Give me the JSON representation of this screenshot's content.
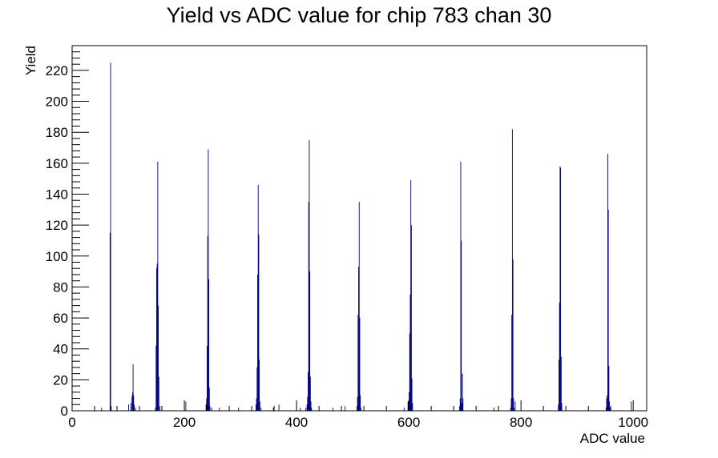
{
  "chart_data": {
    "type": "bar",
    "title": "Yield vs ADC value for chip 783 chan 30",
    "xlabel": "ADC value",
    "ylabel": "Yield",
    "xlim": [
      0,
      1024
    ],
    "ylim": [
      0,
      236
    ],
    "x_ticks": [
      0,
      200,
      400,
      600,
      800,
      1000
    ],
    "y_ticks": [
      0,
      20,
      40,
      60,
      80,
      100,
      120,
      140,
      160,
      180,
      200,
      220
    ],
    "bin_width": 1,
    "grid": false,
    "legend": "none",
    "line_color": "#000080",
    "bins": [
      {
        "x": 52,
        "y": 2
      },
      {
        "x": 67,
        "y": 115
      },
      {
        "x": 68,
        "y": 225
      },
      {
        "x": 69,
        "y": 3
      },
      {
        "x": 100,
        "y": 4
      },
      {
        "x": 104,
        "y": 5
      },
      {
        "x": 106,
        "y": 9
      },
      {
        "x": 107,
        "y": 12
      },
      {
        "x": 108,
        "y": 30
      },
      {
        "x": 109,
        "y": 10
      },
      {
        "x": 110,
        "y": 4
      },
      {
        "x": 112,
        "y": 2
      },
      {
        "x": 148,
        "y": 2
      },
      {
        "x": 149,
        "y": 42
      },
      {
        "x": 150,
        "y": 92
      },
      {
        "x": 151,
        "y": 95
      },
      {
        "x": 152,
        "y": 161
      },
      {
        "x": 153,
        "y": 68
      },
      {
        "x": 154,
        "y": 22
      },
      {
        "x": 156,
        "y": 3
      },
      {
        "x": 202,
        "y": 6
      },
      {
        "x": 238,
        "y": 4
      },
      {
        "x": 239,
        "y": 8
      },
      {
        "x": 240,
        "y": 42
      },
      {
        "x": 241,
        "y": 113
      },
      {
        "x": 242,
        "y": 169
      },
      {
        "x": 243,
        "y": 85
      },
      {
        "x": 244,
        "y": 15
      },
      {
        "x": 245,
        "y": 3
      },
      {
        "x": 248,
        "y": 2
      },
      {
        "x": 262,
        "y": 2
      },
      {
        "x": 296,
        "y": 2
      },
      {
        "x": 327,
        "y": 4
      },
      {
        "x": 328,
        "y": 8
      },
      {
        "x": 329,
        "y": 28
      },
      {
        "x": 330,
        "y": 88
      },
      {
        "x": 331,
        "y": 146
      },
      {
        "x": 332,
        "y": 114
      },
      {
        "x": 333,
        "y": 33
      },
      {
        "x": 334,
        "y": 6
      },
      {
        "x": 336,
        "y": 2
      },
      {
        "x": 358,
        "y": 2
      },
      {
        "x": 368,
        "y": 4
      },
      {
        "x": 406,
        "y": 2
      },
      {
        "x": 416,
        "y": 2
      },
      {
        "x": 418,
        "y": 4
      },
      {
        "x": 419,
        "y": 9
      },
      {
        "x": 420,
        "y": 25
      },
      {
        "x": 421,
        "y": 135
      },
      {
        "x": 422,
        "y": 175
      },
      {
        "x": 423,
        "y": 90
      },
      {
        "x": 424,
        "y": 22
      },
      {
        "x": 425,
        "y": 6
      },
      {
        "x": 426,
        "y": 2
      },
      {
        "x": 464,
        "y": 2
      },
      {
        "x": 486,
        "y": 3
      },
      {
        "x": 507,
        "y": 3
      },
      {
        "x": 508,
        "y": 9
      },
      {
        "x": 509,
        "y": 62
      },
      {
        "x": 510,
        "y": 93
      },
      {
        "x": 511,
        "y": 135
      },
      {
        "x": 512,
        "y": 60
      },
      {
        "x": 513,
        "y": 10
      },
      {
        "x": 514,
        "y": 2
      },
      {
        "x": 591,
        "y": 2
      },
      {
        "x": 598,
        "y": 6
      },
      {
        "x": 599,
        "y": 6
      },
      {
        "x": 600,
        "y": 12
      },
      {
        "x": 601,
        "y": 50
      },
      {
        "x": 602,
        "y": 75
      },
      {
        "x": 603,
        "y": 149
      },
      {
        "x": 604,
        "y": 120
      },
      {
        "x": 605,
        "y": 21
      },
      {
        "x": 606,
        "y": 5
      },
      {
        "x": 690,
        "y": 3
      },
      {
        "x": 691,
        "y": 8
      },
      {
        "x": 692,
        "y": 161
      },
      {
        "x": 693,
        "y": 110
      },
      {
        "x": 694,
        "y": 5
      },
      {
        "x": 695,
        "y": 24
      },
      {
        "x": 696,
        "y": 8
      },
      {
        "x": 751,
        "y": 2
      },
      {
        "x": 781,
        "y": 2
      },
      {
        "x": 782,
        "y": 8
      },
      {
        "x": 783,
        "y": 62
      },
      {
        "x": 784,
        "y": 182
      },
      {
        "x": 785,
        "y": 98
      },
      {
        "x": 786,
        "y": 8
      },
      {
        "x": 787,
        "y": 2
      },
      {
        "x": 789,
        "y": 6
      },
      {
        "x": 866,
        "y": 4
      },
      {
        "x": 867,
        "y": 33
      },
      {
        "x": 868,
        "y": 70
      },
      {
        "x": 869,
        "y": 158
      },
      {
        "x": 870,
        "y": 157
      },
      {
        "x": 871,
        "y": 35
      },
      {
        "x": 872,
        "y": 5
      },
      {
        "x": 951,
        "y": 2
      },
      {
        "x": 952,
        "y": 8
      },
      {
        "x": 953,
        "y": 10
      },
      {
        "x": 954,
        "y": 166
      },
      {
        "x": 955,
        "y": 130
      },
      {
        "x": 956,
        "y": 29
      },
      {
        "x": 957,
        "y": 6
      },
      {
        "x": 958,
        "y": 2
      },
      {
        "x": 996,
        "y": 6
      }
    ]
  }
}
